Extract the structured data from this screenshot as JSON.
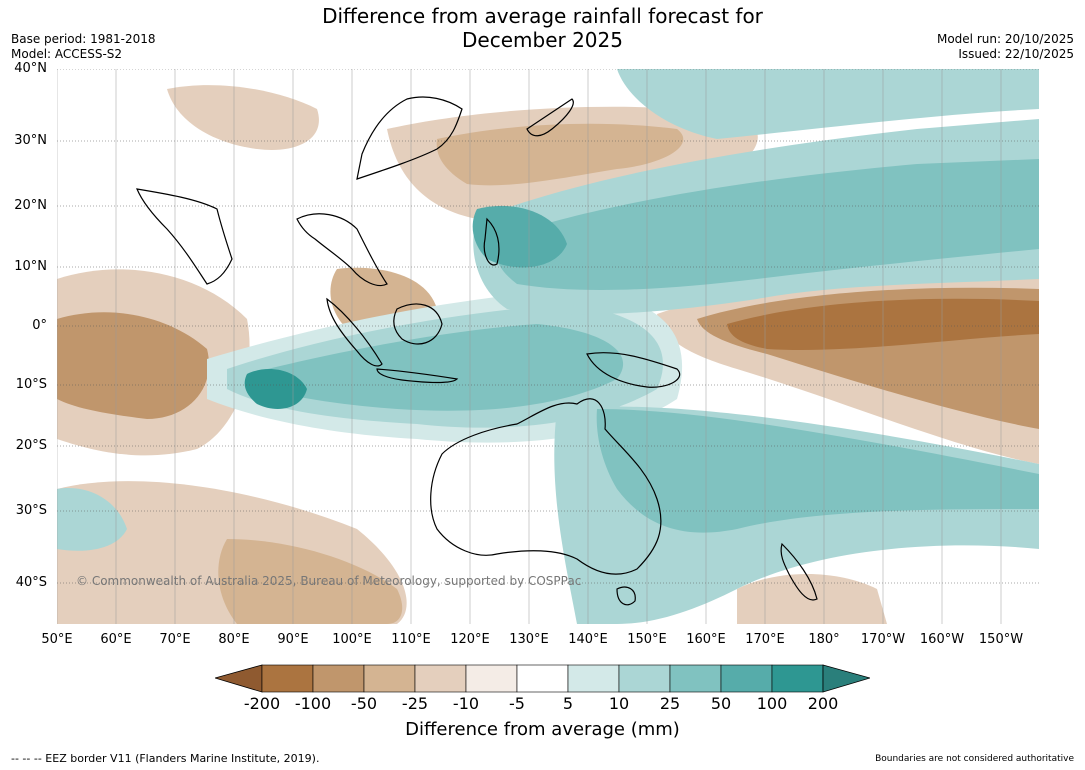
{
  "title_line1": "Difference from average rainfall forecast for",
  "title_line2": "December 2025",
  "base_period": "Base period: 1981-2018",
  "model": "Model: ACCESS-S2",
  "model_run": "Model run: 20/10/2025",
  "issued": "Issued: 22/10/2025",
  "lat_labels": [
    "40°N",
    "30°N",
    "20°N",
    "10°N",
    "0°",
    "10°S",
    "20°S",
    "30°S",
    "40°S"
  ],
  "lon_labels": [
    "50°E",
    "60°E",
    "70°E",
    "80°E",
    "90°E",
    "100°E",
    "110°E",
    "120°E",
    "130°E",
    "140°E",
    "150°E",
    "160°E",
    "170°E",
    "180°",
    "170°W",
    "160°W",
    "150°W"
  ],
  "colorbar": {
    "labels": [
      "-200",
      "-100",
      "-50",
      "-25",
      "-10",
      "-5",
      "5",
      "10",
      "25",
      "50",
      "100",
      "200"
    ],
    "colors": [
      "#8f5a30",
      "#ab7440",
      "#c0966c",
      "#d4b492",
      "#e4cfbd",
      "#f4ece6",
      "#ffffff",
      "#d3e9e8",
      "#abd6d5",
      "#80c2c0",
      "#56acaa",
      "#2e9792",
      "#2a7f7b"
    ],
    "title": "Difference from average (mm)"
  },
  "copyright": "© Commonwealth of Australia 2025, Bureau of Meteorology, supported by COSPPac",
  "eez_note": "--  --  -- EEZ border V11 (Flanders Marine Institute, 2019).",
  "boundaries_note": "Boundaries are not considered authoritative",
  "colors": {
    "dry_strong": "#ab7440",
    "dry_mid": "#c0966c",
    "dry_light": "#d4b492",
    "dry_faint": "#e4cfbd",
    "wet_faint": "#d3e9e8",
    "wet_light": "#abd6d5",
    "wet_mid": "#80c2c0",
    "wet_strong": "#56acaa",
    "wet_max": "#2e9792"
  }
}
